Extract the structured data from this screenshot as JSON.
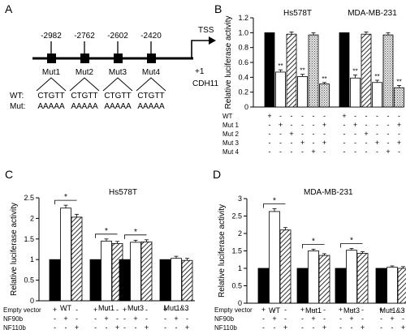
{
  "panel_a": {
    "letter": "A",
    "positions": [
      "-2982",
      "-2762",
      "-2602",
      "-2420"
    ],
    "tss": "TSS",
    "plus_one": "+1",
    "gene": "CDH11",
    "mut_labels": [
      "Mut1",
      "Mut2",
      "Mut3",
      "Mut4"
    ],
    "wt_label": "WT:",
    "mut_label": "Mut:",
    "wt_seqs": [
      "CTGTT",
      "CTGTT",
      "CTGTT",
      "CTGTT"
    ],
    "mut_seqs": [
      "AAAAA",
      "AAAAA",
      "AAAAA",
      "AAAAA"
    ]
  },
  "colors": {
    "black": "#000000",
    "white": "#ffffff",
    "dot_fill": "#e6e6e6"
  },
  "chart_data": [
    {
      "id": "B",
      "letter": "B",
      "type": "bar",
      "ylabel": "Relative luciferase activity",
      "ylim": [
        0,
        1.2
      ],
      "yticks": [
        "0",
        "0.2",
        "0.4",
        "0.6",
        "0.8",
        "1.0",
        "1.2"
      ],
      "groups": [
        {
          "name": "Hs578T",
          "values": [
            1.0,
            0.47,
            0.98,
            0.41,
            0.97,
            0.31
          ],
          "errors": [
            0,
            0.03,
            0.03,
            0.03,
            0.03,
            0.02
          ],
          "patterns": [
            "solid",
            "white",
            "hatch",
            "white",
            "dots",
            "dots"
          ],
          "stars": [
            "",
            "**",
            "",
            "**",
            "",
            "**"
          ]
        },
        {
          "name": "MDA-MB-231",
          "values": [
            1.0,
            0.39,
            0.98,
            0.33,
            0.97,
            0.26
          ],
          "errors": [
            0,
            0.04,
            0.03,
            0.03,
            0.03,
            0.03
          ],
          "patterns": [
            "solid",
            "white",
            "hatch",
            "white",
            "dots",
            "dots"
          ],
          "stars": [
            "",
            "**",
            "",
            "**",
            "",
            "**"
          ]
        }
      ],
      "rows": [
        {
          "label": "WT",
          "signs": [
            "+",
            "-",
            "-",
            "-",
            "-",
            "-"
          ]
        },
        {
          "label": "Mut 1",
          "signs": [
            "-",
            "+",
            "-",
            "-",
            "-",
            "+"
          ]
        },
        {
          "label": "Mut 2",
          "signs": [
            "-",
            "-",
            "+",
            "-",
            "-",
            "-"
          ]
        },
        {
          "label": "Mut 3",
          "signs": [
            "-",
            "-",
            "-",
            "+",
            "-",
            "+"
          ]
        },
        {
          "label": "Mut 4",
          "signs": [
            "-",
            "-",
            "-",
            "-",
            "+",
            "-"
          ]
        }
      ]
    },
    {
      "id": "C",
      "letter": "C",
      "type": "bar",
      "title": "Hs578T",
      "ylabel": "Relative luciferase activity",
      "ylim": [
        0,
        2.5
      ],
      "yticks": [
        "0",
        "0.5",
        "1",
        "1.5",
        "2",
        "2.5"
      ],
      "categories": [
        "WT",
        "Mut1",
        "Mut3",
        "Mut1&3"
      ],
      "series": [
        {
          "name": "Empty vector",
          "pattern": "solid",
          "values": [
            1.0,
            1.0,
            1.0,
            1.0
          ],
          "errors": [
            0,
            0,
            0,
            0
          ]
        },
        {
          "name": "NF90b",
          "pattern": "white",
          "values": [
            2.25,
            1.45,
            1.42,
            1.03
          ],
          "errors": [
            0.07,
            0.05,
            0.05,
            0.05
          ]
        },
        {
          "name": "NF110b",
          "pattern": "hatch",
          "values": [
            2.03,
            1.39,
            1.43,
            0.98
          ],
          "errors": [
            0.07,
            0.05,
            0.05,
            0.05
          ]
        }
      ],
      "stars": [
        "*",
        "*",
        "*",
        ""
      ],
      "rows": [
        {
          "label": "Empty vector",
          "signs": [
            "+",
            "-",
            "-"
          ]
        },
        {
          "label": "NF90b",
          "signs": [
            "-",
            "+",
            "-"
          ]
        },
        {
          "label": "NF110b",
          "signs": [
            "-",
            "-",
            "+"
          ]
        }
      ]
    },
    {
      "id": "D",
      "letter": "D",
      "type": "bar",
      "title": "MDA-MB-231",
      "ylabel": "Relative luciferase activity",
      "ylim": [
        0,
        3
      ],
      "yticks": [
        "0",
        "0.5",
        "1",
        "1.5",
        "2",
        "2.5",
        "3"
      ],
      "categories": [
        "WT",
        "Mut1",
        "Mut3",
        "Mut1&3"
      ],
      "series": [
        {
          "name": "Empty vector",
          "pattern": "solid",
          "values": [
            1.0,
            1.0,
            1.0,
            1.0
          ],
          "errors": [
            0,
            0,
            0,
            0
          ]
        },
        {
          "name": "NF90b",
          "pattern": "white",
          "values": [
            2.63,
            1.5,
            1.52,
            1.03
          ],
          "errors": [
            0.08,
            0.05,
            0.05,
            0.04
          ]
        },
        {
          "name": "NF110b",
          "pattern": "hatch",
          "values": [
            2.1,
            1.37,
            1.43,
            1.0
          ],
          "errors": [
            0.07,
            0.05,
            0.05,
            0.05
          ]
        }
      ],
      "stars": [
        "*",
        "*",
        "*",
        ""
      ],
      "rows": [
        {
          "label": "Empty vector",
          "signs": [
            "+",
            "-",
            "-"
          ]
        },
        {
          "label": "NF90b",
          "signs": [
            "-",
            "+",
            "-"
          ]
        },
        {
          "label": "NF110b",
          "signs": [
            "-",
            "-",
            "+"
          ]
        }
      ]
    }
  ]
}
